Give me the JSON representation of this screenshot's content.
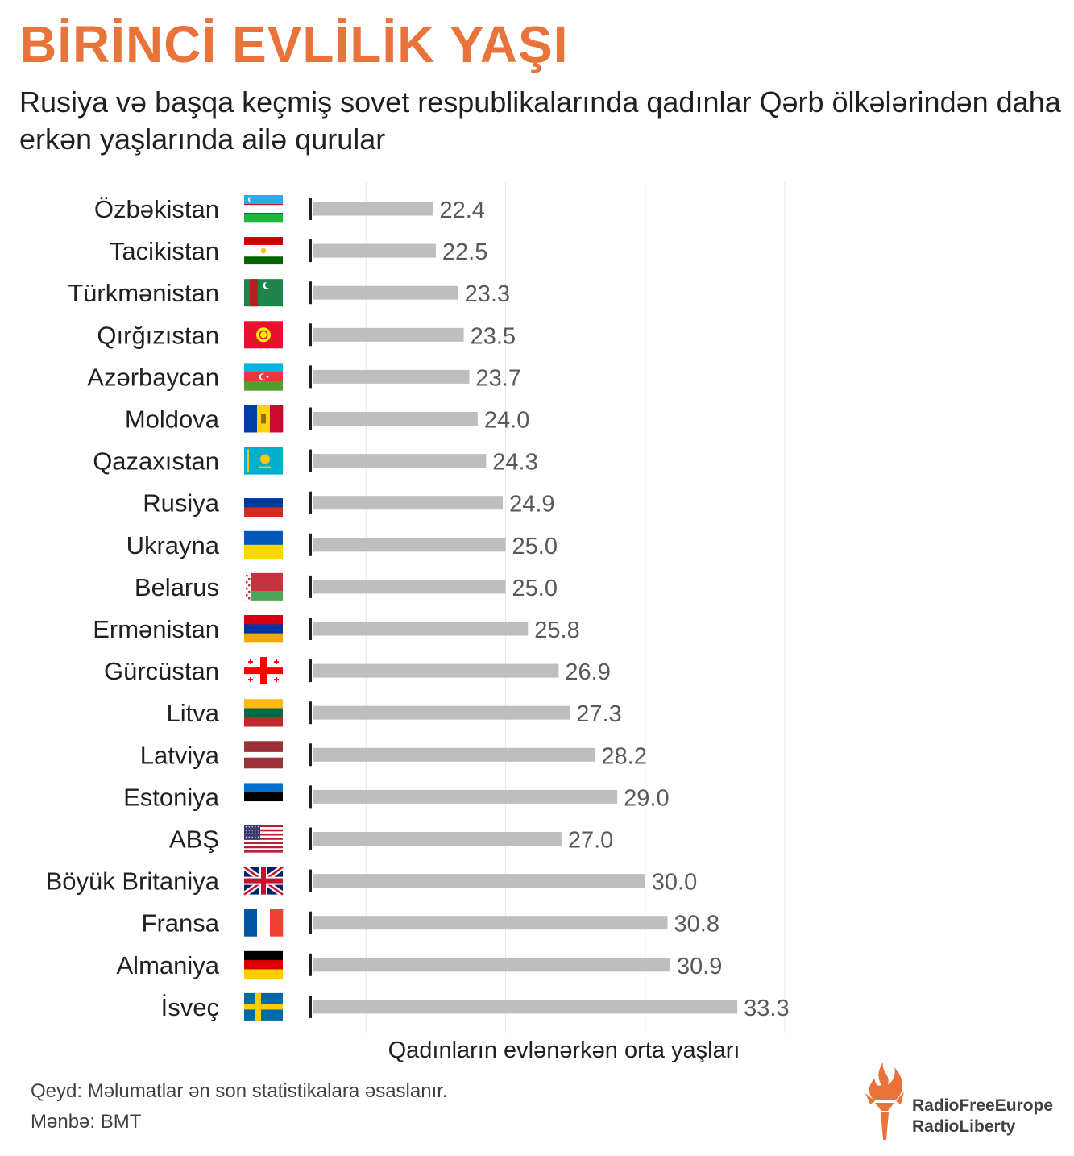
{
  "title": "BİRİNCİ EVLİLİK YAŞI",
  "subtitle": "Rusiya və başqa keçmiş sovet respublikalarında qadınlar Qərb ölkələrindən daha erkən yaşlarında ailə qurular",
  "note": "Qeyd: Məlumatlar ən son statistikalara əsaslanır.",
  "source": "Mənbə: BMT",
  "logo": {
    "line1": "RadioFreeEurope",
    "line2": "RadioLiberty",
    "icon": "torch-flame-icon",
    "color": "#e8743b"
  },
  "colors": {
    "bar": "#bcbec0",
    "tick": "#231f20",
    "grid": "#e6e7e8",
    "title": "#e8743b"
  },
  "chart_data": {
    "type": "bar",
    "orientation": "horizontal",
    "title": "BİRİNCİ EVLİLİK YAŞI",
    "xlabel": "Qadınların evlənərkən orta yaşları",
    "ylabel": "",
    "xlim": [
      0,
      35
    ],
    "grid": true,
    "categories": [
      "Özbəkistan",
      "Tacikistan",
      "Türkmənistan",
      "Qırğızıstan",
      "Azərbaycan",
      "Moldova",
      "Qazaxıstan",
      "Rusiya",
      "Ukrayna",
      "Belarus",
      "Ermənistan",
      "Gürcüstan",
      "Litva",
      "Latviya",
      "Estoniya",
      "ABŞ",
      "Böyük Britaniya",
      "Fransa",
      "Almaniya",
      "İsveç"
    ],
    "values": [
      22.4,
      22.5,
      23.3,
      23.5,
      23.7,
      24.0,
      24.3,
      24.9,
      25.0,
      25.0,
      25.8,
      26.9,
      27.3,
      28.2,
      29.0,
      27.0,
      30.0,
      30.8,
      30.9,
      33.3
    ],
    "value_labels": [
      "22.4",
      "22.5",
      "23.3",
      "23.5",
      "23.7",
      "24.0",
      "24.3",
      "24.9",
      "25.0",
      "25.0",
      "25.8",
      "26.9",
      "27.3",
      "28.2",
      "29.0",
      "27.0",
      "30.0",
      "30.8",
      "30.9",
      "33.3"
    ],
    "flags": [
      "flag-uzbekistan-icon",
      "flag-tajikistan-icon",
      "flag-turkmenistan-icon",
      "flag-kyrgyzstan-icon",
      "flag-azerbaijan-icon",
      "flag-moldova-icon",
      "flag-kazakhstan-icon",
      "flag-russia-icon",
      "flag-ukraine-icon",
      "flag-belarus-icon",
      "flag-armenia-icon",
      "flag-georgia-icon",
      "flag-lithuania-icon",
      "flag-latvia-icon",
      "flag-estonia-icon",
      "flag-usa-icon",
      "flag-uk-icon",
      "flag-france-icon",
      "flag-germany-icon",
      "flag-sweden-icon"
    ]
  }
}
